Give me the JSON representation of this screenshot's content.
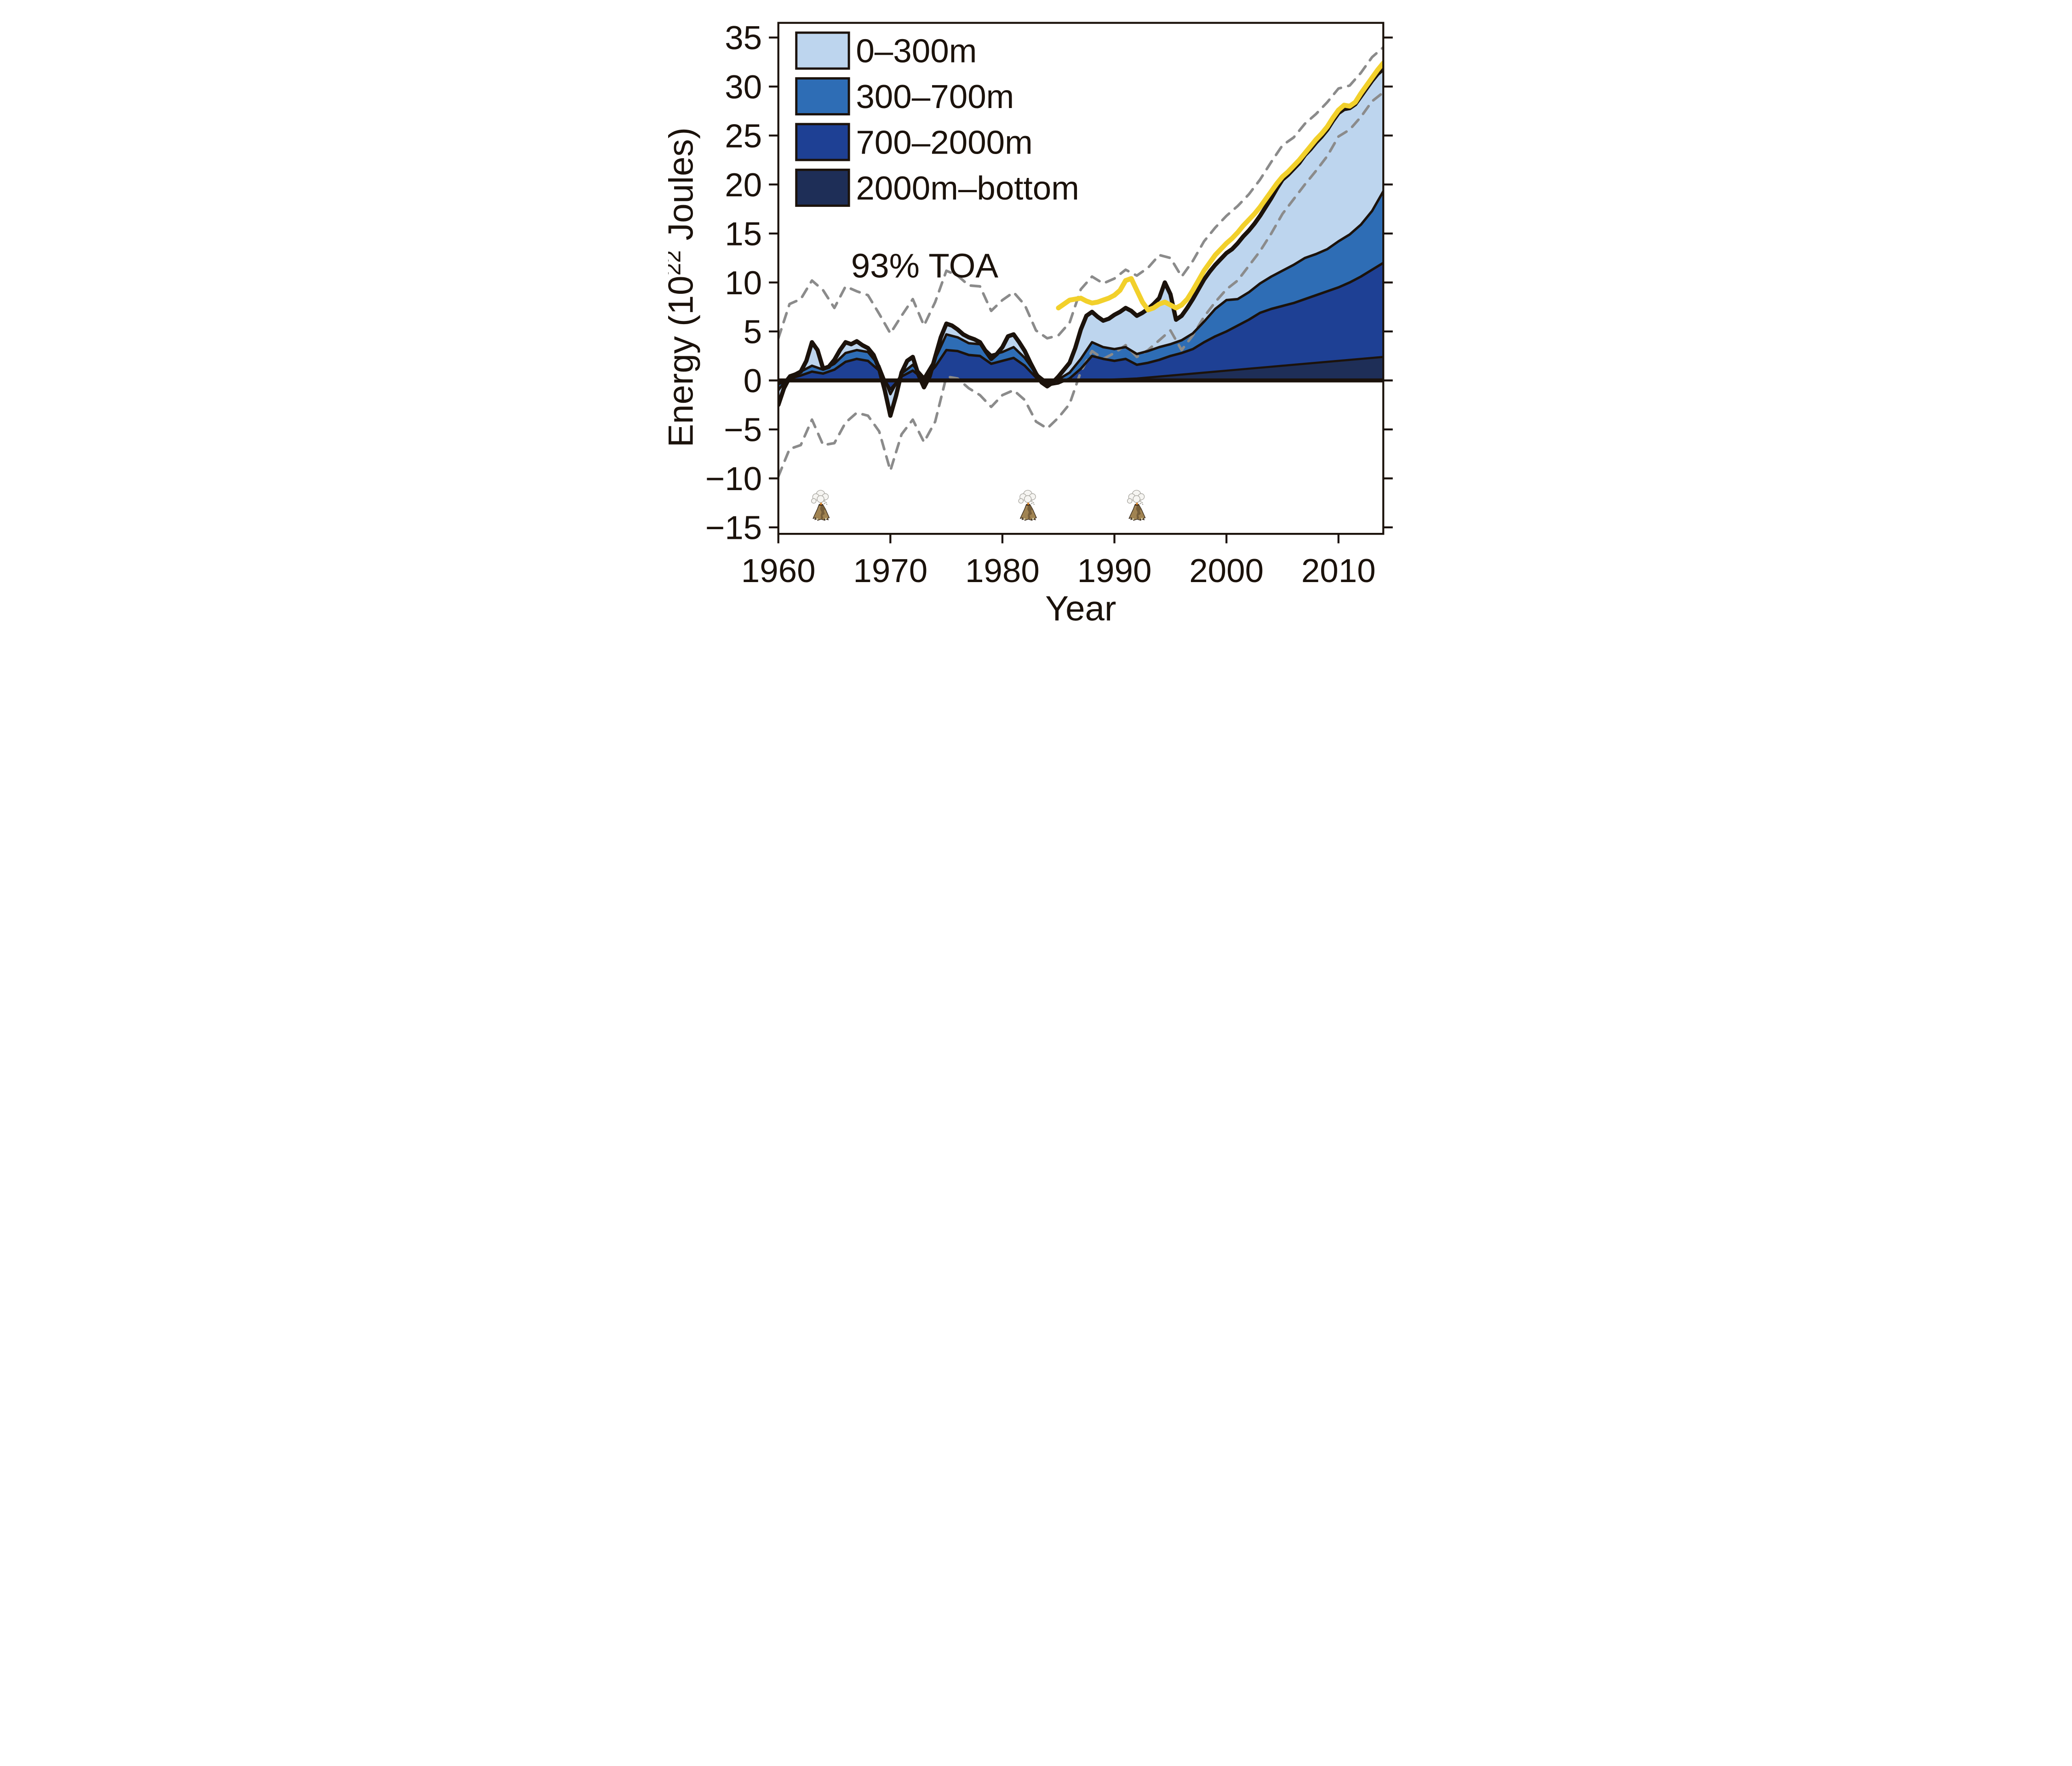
{
  "figure": {
    "xlabel": "Year",
    "ylabel_prefix": "Energy (10",
    "ylabel_sup": "22",
    "ylabel_suffix": " Joules)",
    "toa_label": "93% TOA",
    "legend_labels": [
      "0–300m",
      "300–700m",
      "700–2000m",
      "2000m–bottom"
    ]
  },
  "chart_data": {
    "type": "area",
    "title": "",
    "xlabel": "Year",
    "ylabel": "Energy (10^22 Joules)",
    "stack_order": [
      "2000m-bottom",
      "700-2000m",
      "300-700m",
      "0-300m"
    ],
    "legend_position": "top-left",
    "grid": false,
    "xlim": [
      1960,
      2014
    ],
    "ylim": [
      -15.66,
      36.5
    ],
    "x_ticks": [
      1960,
      1970,
      1980,
      1990,
      2000,
      2010
    ],
    "y_ticks": [
      -15,
      -10,
      -5,
      0,
      5,
      10,
      15,
      20,
      25,
      30,
      35
    ],
    "years": [
      1960,
      1961,
      1962,
      1963,
      1964,
      1965,
      1966,
      1967,
      1968,
      1969,
      1970,
      1971,
      1972,
      1973,
      1974,
      1975,
      1976,
      1977,
      1978,
      1979,
      1980,
      1981,
      1982,
      1983,
      1984,
      1985,
      1986,
      1987,
      1988,
      1989,
      1990,
      1991,
      1992,
      1993,
      1994,
      1995,
      1996,
      1997,
      1998,
      1999,
      2000,
      2001,
      2002,
      2003,
      2004,
      2005,
      2006,
      2007,
      2008,
      2009,
      2010,
      2011,
      2012,
      2013,
      2014
    ],
    "cumulative": {
      "bottom2000": [
        0,
        0,
        0,
        0,
        0,
        0,
        0,
        0,
        0,
        0,
        0,
        0,
        0,
        0,
        0,
        0,
        0,
        0,
        0,
        0,
        0,
        0,
        0,
        0,
        0,
        0,
        0,
        0,
        0,
        0,
        0.1,
        0.15,
        0.2,
        0.3,
        0.4,
        0.5,
        0.6,
        0.7,
        0.8,
        0.9,
        1.0,
        1.1,
        1.2,
        1.3,
        1.4,
        1.5,
        1.6,
        1.7,
        1.8,
        1.9,
        2.0,
        2.1,
        2.2,
        2.3,
        2.4
      ],
      "m700_2000": [
        -0.4,
        0.2,
        0.5,
        0.9,
        0.7,
        1.1,
        1.9,
        2.2,
        2.0,
        1.0,
        -0.9,
        0.4,
        1.0,
        0.1,
        1.4,
        3.1,
        3.0,
        2.6,
        2.5,
        1.7,
        2.0,
        2.3,
        1.5,
        0.3,
        -0.5,
        -0.3,
        0.2,
        1.2,
        2.5,
        2.2,
        2.0,
        2.2,
        1.6,
        1.8,
        2.1,
        2.5,
        2.8,
        3.2,
        3.9,
        4.5,
        5.0,
        5.6,
        6.2,
        6.9,
        7.3,
        7.6,
        7.9,
        8.3,
        8.7,
        9.1,
        9.5,
        10.0,
        10.6,
        11.3,
        12.0
      ],
      "m300_700": [
        -1.0,
        0.5,
        0.9,
        1.5,
        1.1,
        1.7,
        2.8,
        3.1,
        2.9,
        1.5,
        -1.4,
        0.7,
        1.6,
        0.3,
        2.2,
        4.7,
        4.4,
        3.8,
        3.7,
        2.6,
        2.9,
        3.4,
        2.3,
        0.7,
        -0.2,
        0.1,
        0.8,
        2.2,
        3.9,
        3.4,
        3.2,
        3.4,
        2.7,
        3.0,
        3.4,
        3.7,
        4.1,
        4.8,
        6.0,
        7.3,
        8.2,
        8.3,
        9.0,
        9.9,
        10.6,
        11.2,
        11.8,
        12.5,
        12.9,
        13.4,
        14.2,
        14.9,
        15.9,
        17.3,
        19.3
      ]
    },
    "total": {
      "x": [
        1960,
        1960.5,
        1961,
        1961.5,
        1962,
        1962.5,
        1963,
        1963.5,
        1964,
        1964.5,
        1965,
        1965.5,
        1966,
        1966.5,
        1967,
        1967.5,
        1968,
        1968.5,
        1969,
        1969.5,
        1970,
        1970.5,
        1971,
        1971.5,
        1972,
        1972.5,
        1973,
        1973.5,
        1974,
        1974.5,
        1975,
        1975.5,
        1976,
        1976.5,
        1977,
        1977.5,
        1978,
        1978.5,
        1979,
        1979.5,
        1980,
        1980.5,
        1981,
        1981.5,
        1982,
        1982.5,
        1983,
        1983.5,
        1984,
        1984.5,
        1985,
        1985.5,
        1986,
        1986.5,
        1987,
        1987.5,
        1988,
        1988.5,
        1989,
        1989.5,
        1990,
        1990.5,
        1991,
        1991.5,
        1992,
        1992.5,
        1993,
        1993.5,
        1994,
        1994.5,
        1995,
        1995.5,
        1996,
        1996.5,
        1997,
        1997.5,
        1998,
        1998.5,
        1999,
        1999.5,
        2000,
        2000.5,
        2001,
        2001.5,
        2002,
        2002.5,
        2003,
        2003.5,
        2004,
        2004.5,
        2005,
        2005.5,
        2006,
        2006.5,
        2007,
        2007.5,
        2008,
        2008.5,
        2009,
        2009.5,
        2010,
        2010.5,
        2011,
        2011.5,
        2012,
        2012.5,
        2013,
        2013.5,
        2014
      ],
      "y": [
        -2.5,
        -0.8,
        0.3,
        0.6,
        0.9,
        2.0,
        3.9,
        3.1,
        1.2,
        1.4,
        2.1,
        3.1,
        3.9,
        3.7,
        4.0,
        3.6,
        3.3,
        2.6,
        1.2,
        -1.0,
        -3.6,
        -1.6,
        0.8,
        2.0,
        2.4,
        0.6,
        -0.7,
        0.4,
        2.4,
        4.4,
        5.8,
        5.6,
        5.2,
        4.7,
        4.4,
        4.2,
        3.9,
        3.0,
        2.2,
        2.7,
        3.4,
        4.5,
        4.7,
        3.9,
        3.0,
        1.8,
        0.7,
        -0.2,
        -0.6,
        -0.2,
        0.4,
        1.1,
        1.8,
        3.3,
        5.2,
        6.6,
        7.0,
        6.5,
        6.1,
        6.3,
        6.7,
        7.0,
        7.4,
        7.1,
        6.6,
        6.9,
        7.3,
        7.8,
        8.4,
        10.0,
        8.8,
        6.2,
        6.6,
        7.4,
        8.3,
        9.3,
        10.3,
        11.1,
        11.8,
        12.4,
        13.0,
        13.4,
        14.0,
        14.7,
        15.3,
        16.0,
        16.8,
        17.7,
        18.6,
        19.6,
        20.5,
        21.0,
        21.6,
        22.2,
        23.0,
        23.6,
        24.3,
        24.9,
        25.6,
        26.5,
        27.3,
        27.7,
        27.8,
        28.2,
        29.0,
        29.8,
        30.6,
        31.3,
        31.8
      ]
    },
    "toa_93": {
      "x": [
        1985,
        1985.5,
        1986,
        1986.5,
        1987,
        1987.5,
        1988,
        1988.5,
        1989,
        1989.5,
        1990,
        1990.5,
        1991,
        1991.5,
        1992,
        1992.5,
        1993,
        1993.5,
        1994,
        1994.5,
        1995,
        1995.5,
        1996,
        1996.5,
        1997,
        1997.5,
        1998,
        1998.5,
        1999,
        1999.5,
        2000,
        2000.5,
        2001,
        2001.5,
        2002,
        2002.5,
        2003,
        2003.5,
        2004,
        2004.5,
        2005,
        2005.5,
        2006,
        2006.5,
        2007,
        2007.5,
        2008,
        2008.5,
        2009,
        2009.5,
        2010,
        2010.5,
        2011,
        2011.5,
        2012,
        2012.5,
        2013,
        2013.5,
        2014
      ],
      "y": [
        7.4,
        7.8,
        8.2,
        8.3,
        8.4,
        8.1,
        7.9,
        8.0,
        8.2,
        8.4,
        8.7,
        9.2,
        10.2,
        10.4,
        9.2,
        8.0,
        7.2,
        7.4,
        7.8,
        8.0,
        7.7,
        7.4,
        7.7,
        8.3,
        9.2,
        10.2,
        11.2,
        12.0,
        12.8,
        13.4,
        14.0,
        14.5,
        15.1,
        15.8,
        16.4,
        17.0,
        17.7,
        18.5,
        19.3,
        20.1,
        20.8,
        21.3,
        21.9,
        22.5,
        23.2,
        23.9,
        24.6,
        25.2,
        25.9,
        26.8,
        27.6,
        28.1,
        28.0,
        28.4,
        29.3,
        30.1,
        30.9,
        31.7,
        32.4
      ]
    },
    "uncertainty_upper": [
      4.3,
      7.8,
      8.3,
      10.2,
      9.2,
      7.4,
      9.6,
      9.1,
      8.7,
      6.8,
      4.8,
      6.6,
      8.3,
      5.6,
      8.0,
      11.2,
      10.7,
      9.7,
      9.6,
      7.1,
      8.2,
      9.0,
      7.7,
      5.1,
      4.3,
      4.6,
      5.9,
      9.3,
      10.6,
      9.9,
      10.4,
      11.3,
      10.7,
      11.5,
      12.8,
      12.5,
      10.6,
      12.2,
      14.2,
      15.6,
      16.8,
      17.8,
      19.0,
      20.5,
      22.3,
      24.0,
      24.8,
      26.2,
      27.2,
      28.4,
      29.8,
      30.1,
      31.4,
      33.0,
      34.0
    ],
    "uncertainty_lower": [
      -9.8,
      -7.0,
      -6.6,
      -4.0,
      -6.6,
      -6.4,
      -4.3,
      -3.3,
      -3.6,
      -5.2,
      -9.2,
      -5.5,
      -4.0,
      -6.3,
      -4.2,
      0.4,
      0.2,
      -0.8,
      -1.5,
      -2.7,
      -1.5,
      -1.0,
      -2.0,
      -4.2,
      -4.9,
      -3.8,
      -2.4,
      0.9,
      3.0,
      2.2,
      2.8,
      3.6,
      2.4,
      3.1,
      4.1,
      5.1,
      3.1,
      4.6,
      6.5,
      8.0,
      9.3,
      10.2,
      11.7,
      13.2,
      15.0,
      17.0,
      18.5,
      20.0,
      21.4,
      22.9,
      24.9,
      25.6,
      26.9,
      28.5,
      29.4
    ],
    "volcano_years": [
      1963.8,
      1982.3,
      1992.0
    ],
    "colors": {
      "band_0_300": "#bdd5ee",
      "band_300_700": "#2e6db5",
      "band_700_2000": "#1e4094",
      "band_2000_bottom": "#1e2e57",
      "line": "#1b120b",
      "toa": "#f2d02b",
      "toa_text": "#eecb4d",
      "uncertainty": "#8b8b8b",
      "text": "#1b120b"
    }
  }
}
